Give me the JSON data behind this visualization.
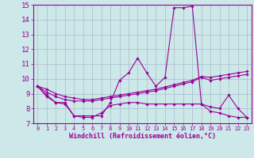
{
  "xlabel": "Windchill (Refroidissement éolien,°C)",
  "xlim": [
    -0.5,
    23.5
  ],
  "ylim": [
    7,
    15
  ],
  "yticks": [
    7,
    8,
    9,
    10,
    11,
    12,
    13,
    14,
    15
  ],
  "xtick_labels": [
    "0",
    "1",
    "2",
    "3",
    "4",
    "5",
    "6",
    "7",
    "8",
    "9",
    "10",
    "11",
    "12",
    "13",
    "14",
    "15",
    "16",
    "17",
    "18",
    "19",
    "20",
    "21",
    "22",
    "23"
  ],
  "background_color": "#cce8e8",
  "line_color": "#990099",
  "grid_color": "#aabbcc",
  "series1": [
    9.5,
    8.9,
    8.4,
    8.4,
    7.5,
    7.5,
    7.5,
    7.5,
    8.4,
    9.9,
    10.4,
    11.4,
    10.4,
    9.5,
    10.1,
    14.8,
    14.8,
    14.9,
    8.3,
    8.1,
    8.0,
    8.9,
    8.0,
    7.4
  ],
  "series2": [
    9.5,
    8.8,
    8.4,
    8.3,
    7.5,
    7.4,
    7.4,
    7.7,
    8.2,
    8.3,
    8.4,
    8.4,
    8.3,
    8.3,
    8.3,
    8.3,
    8.3,
    8.3,
    8.3,
    7.8,
    7.7,
    7.5,
    7.4,
    7.4
  ],
  "series3": [
    9.5,
    9.1,
    8.8,
    8.6,
    8.5,
    8.5,
    8.5,
    8.6,
    8.7,
    8.8,
    8.9,
    9.0,
    9.1,
    9.2,
    9.35,
    9.5,
    9.65,
    9.8,
    10.1,
    9.9,
    10.0,
    10.1,
    10.2,
    10.3
  ],
  "series4": [
    9.5,
    9.3,
    9.0,
    8.8,
    8.7,
    8.6,
    8.6,
    8.7,
    8.8,
    8.9,
    9.0,
    9.1,
    9.2,
    9.3,
    9.45,
    9.6,
    9.75,
    9.9,
    10.15,
    10.1,
    10.2,
    10.3,
    10.4,
    10.5
  ]
}
